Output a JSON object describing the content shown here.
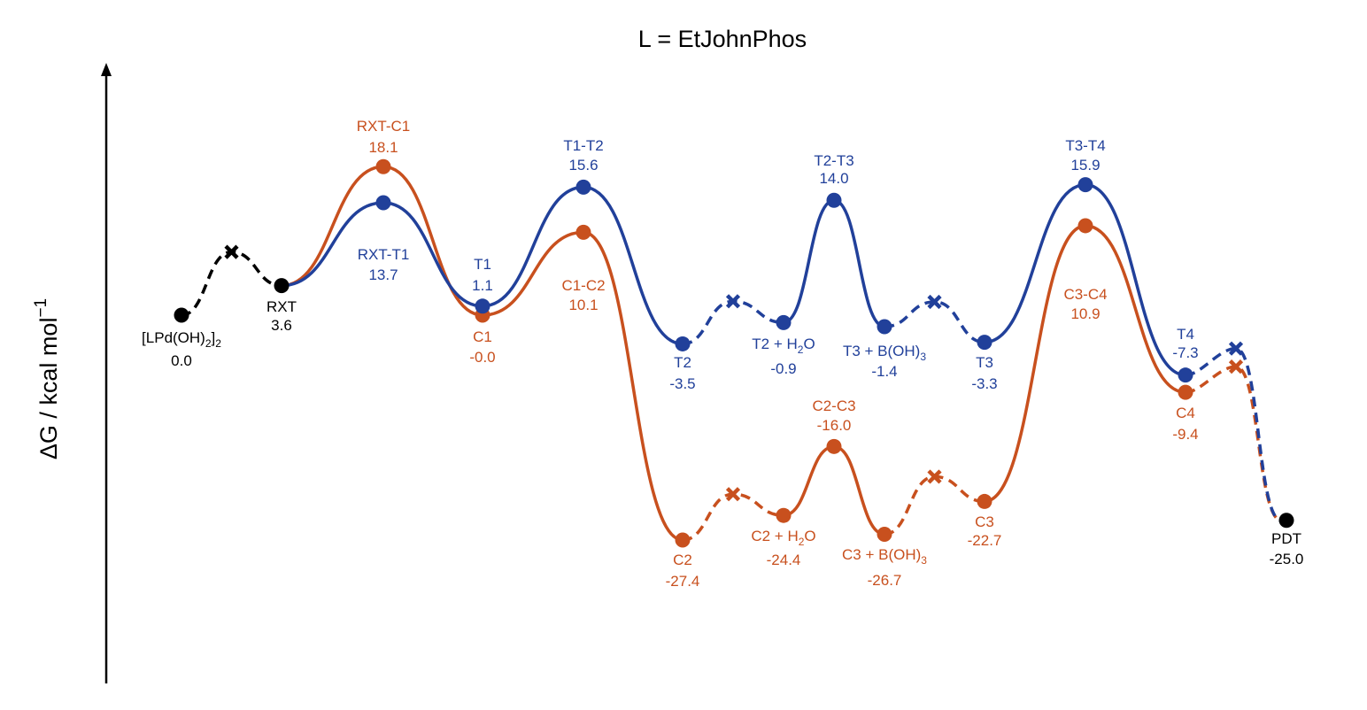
{
  "chart_data": {
    "type": "line",
    "title": "L = EtJohnPhos",
    "ylabel": "ΔG / kcal mol⁻¹",
    "xlabel": "",
    "ylim": [
      -35,
      30
    ],
    "grid": false,
    "legend": "none",
    "colors": {
      "shared": "#000000",
      "T": "#21409A",
      "C": "#C8501E"
    },
    "series": [
      {
        "id": "shared",
        "points": [
          {
            "key": "start",
            "name": "[LPd(OH)2]2",
            "name_main": "[LPd(OH)",
            "name_sub": "2",
            "name_after": "]",
            "name_sub2": "2",
            "value": 0.0,
            "value_label": "0.0"
          },
          {
            "key": "rxt",
            "name": "RXT",
            "value": 3.6,
            "value_label": "3.6"
          },
          {
            "key": "pdt",
            "name": "PDT",
            "value": -25.0,
            "value_label": "-25.0"
          }
        ]
      },
      {
        "id": "T",
        "points": [
          {
            "key": "rxt_t1",
            "name": "RXT-T1",
            "value": 13.7,
            "value_label": "13.7"
          },
          {
            "key": "t1",
            "name": "T1",
            "value": 1.1,
            "value_label": "1.1"
          },
          {
            "key": "t1_t2",
            "name": "T1-T2",
            "value": 15.6,
            "value_label": "15.6"
          },
          {
            "key": "t2",
            "name": "T2",
            "value": -3.5,
            "value_label": "-3.5"
          },
          {
            "key": "t2h",
            "name": "T2 + H2O",
            "name_main": "T2 + H",
            "name_sub": "2",
            "name_after": "O",
            "value": -0.9,
            "value_label": "-0.9"
          },
          {
            "key": "t2_t3",
            "name": "T2-T3",
            "value": 14.0,
            "value_label": "14.0"
          },
          {
            "key": "t3b",
            "name": "T3 + B(OH)3",
            "name_main": "T3 + B(OH)",
            "name_sub": "3",
            "value": -1.4,
            "value_label": "-1.4"
          },
          {
            "key": "t3",
            "name": "T3",
            "value": -3.3,
            "value_label": "-3.3"
          },
          {
            "key": "t3_t4",
            "name": "T3-T4",
            "value": 15.9,
            "value_label": "15.9"
          },
          {
            "key": "t4",
            "name": "T4",
            "value": -7.3,
            "value_label": "-7.3"
          }
        ]
      },
      {
        "id": "C",
        "points": [
          {
            "key": "rxt_c1",
            "name": "RXT-C1",
            "value": 18.1,
            "value_label": "18.1"
          },
          {
            "key": "c1",
            "name": "C1",
            "value": 0.0,
            "value_label": "-0.0"
          },
          {
            "key": "c1_c2",
            "name": "C1-C2",
            "value": 10.1,
            "value_label": "10.1"
          },
          {
            "key": "c2",
            "name": "C2",
            "value": -27.4,
            "value_label": "-27.4"
          },
          {
            "key": "c2h",
            "name": "C2 + H2O",
            "name_main": "C2 + H",
            "name_sub": "2",
            "name_after": "O",
            "value": -24.4,
            "value_label": "-24.4"
          },
          {
            "key": "c2_c3",
            "name": "C2-C3",
            "value": -16.0,
            "value_label": "-16.0"
          },
          {
            "key": "c3b",
            "name": "C3 + B(OH)3",
            "name_main": "C3 + B(OH)",
            "name_sub": "3",
            "value": -26.7,
            "value_label": "-26.7"
          },
          {
            "key": "c3",
            "name": "C3",
            "value": -22.7,
            "value_label": "-22.7"
          },
          {
            "key": "c3_c4",
            "name": "C3-C4",
            "value": 10.9,
            "value_label": "10.9"
          },
          {
            "key": "c4",
            "name": "C4",
            "value": -9.4,
            "value_label": "-9.4"
          }
        ]
      }
    ]
  }
}
